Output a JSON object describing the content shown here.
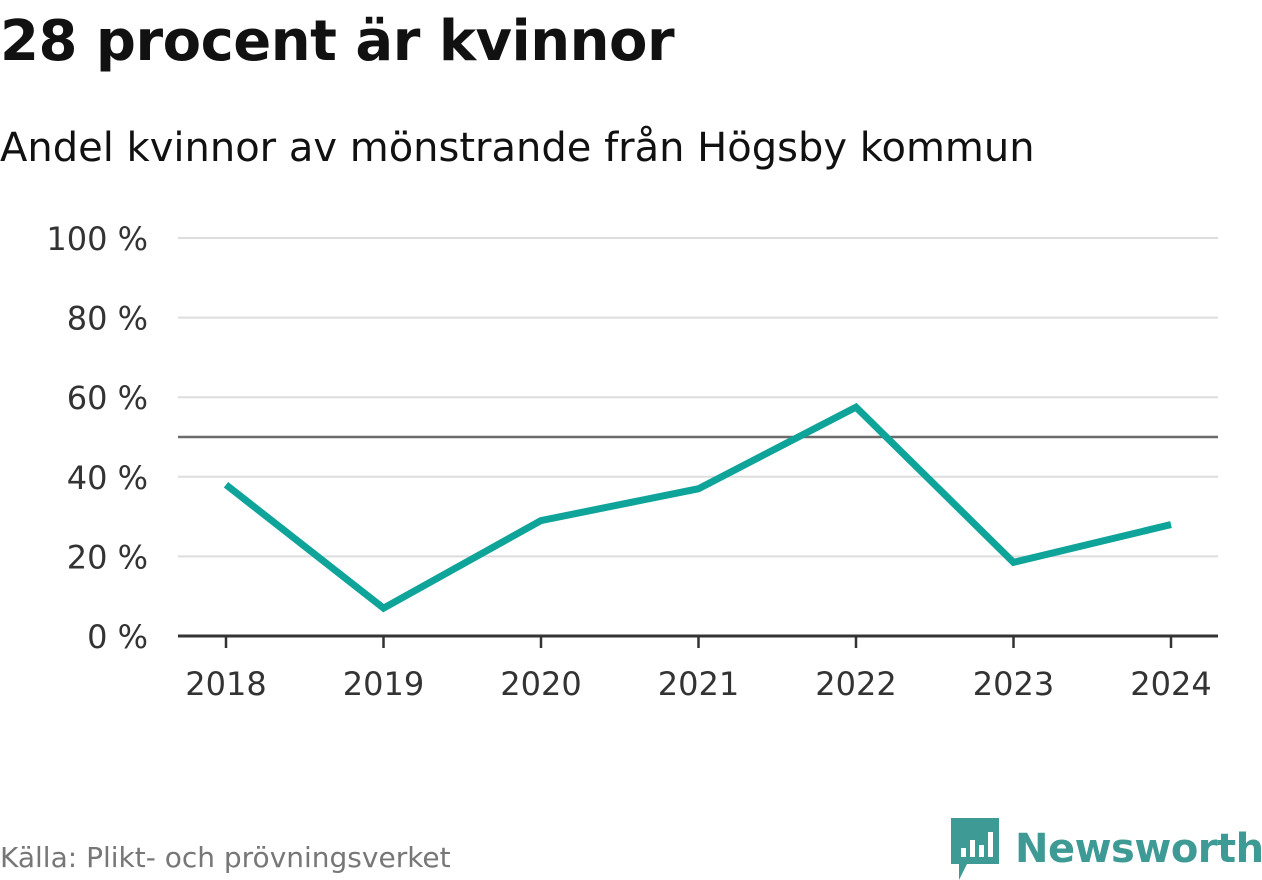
{
  "title": "28 procent är kvinnor",
  "subtitle": "Andel kvinnor av mönstrande från Högsby kommun",
  "source": "Källa: Plikt- och prövningsverket",
  "brand": {
    "name": "Newsworthy",
    "color": "#3d9a94",
    "icon": "newsworthy-logo-icon"
  },
  "colors": {
    "line": "#0fa49a",
    "grid": "#dddddd",
    "reference": "#6b6b6b",
    "axis": "#333333"
  },
  "chart_data": {
    "type": "line",
    "categories": [
      "2018",
      "2019",
      "2020",
      "2021",
      "2022",
      "2023",
      "2024"
    ],
    "series": [
      {
        "name": "Andel kvinnor",
        "values": [
          38,
          7,
          29,
          37,
          57.5,
          18.5,
          28
        ]
      }
    ],
    "ylim": [
      0,
      100
    ],
    "yticks": [
      0,
      20,
      40,
      60,
      80,
      100
    ],
    "ytick_labels": [
      "0 %",
      "20 %",
      "40 %",
      "60 %",
      "80 %",
      "100 %"
    ],
    "reference_line": 50,
    "grid": true,
    "title": "28 procent är kvinnor",
    "subtitle": "Andel kvinnor av mönstrande från Högsby kommun",
    "xlabel": "",
    "ylabel": ""
  }
}
